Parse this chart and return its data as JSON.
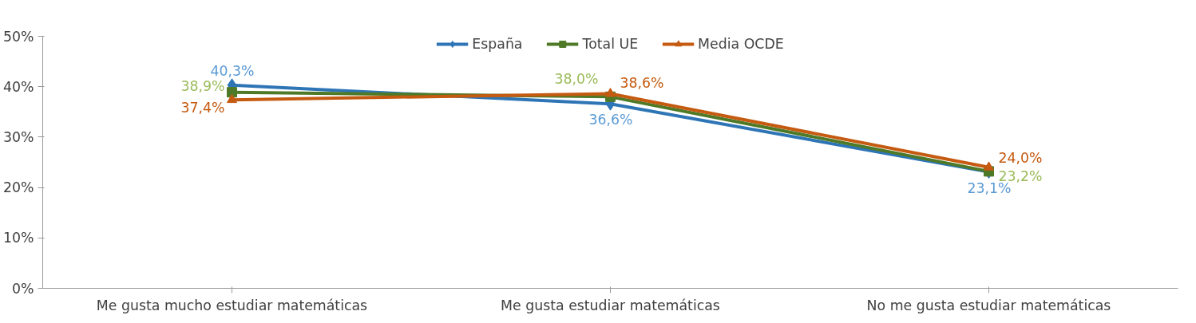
{
  "chart_data": {
    "type": "line",
    "categories": [
      "Me gusta mucho estudiar matemáticas",
      "Me gusta estudiar matemáticas",
      "No me gusta estudiar matemáticas"
    ],
    "ylim": [
      0,
      50
    ],
    "yticks": [
      {
        "value": 0,
        "label": "0%"
      },
      {
        "value": 10,
        "label": "10%"
      },
      {
        "value": 20,
        "label": "20%"
      },
      {
        "value": 30,
        "label": "30%"
      },
      {
        "value": 40,
        "label": "40%"
      },
      {
        "value": 50,
        "label": "50%"
      }
    ],
    "series": [
      {
        "name": "España",
        "color": "#2e75b6",
        "marker": "diamond",
        "values": [
          40.3,
          36.6,
          23.1
        ],
        "value_labels": [
          "40,3%",
          "36,6%",
          "23,1%"
        ]
      },
      {
        "name": "Total UE",
        "color": "#4e7a27",
        "marker": "square",
        "values": [
          38.9,
          38.0,
          23.2
        ],
        "value_labels": [
          "38,9%",
          "38,0%",
          "23,2%"
        ]
      },
      {
        "name": "Media OCDE",
        "color": "#c55a11",
        "marker": "triangle",
        "values": [
          37.4,
          38.6,
          24.0
        ],
        "value_labels": [
          "37,4%",
          "38,6%",
          "24,0%"
        ]
      }
    ],
    "legend": "top",
    "grid": false
  }
}
